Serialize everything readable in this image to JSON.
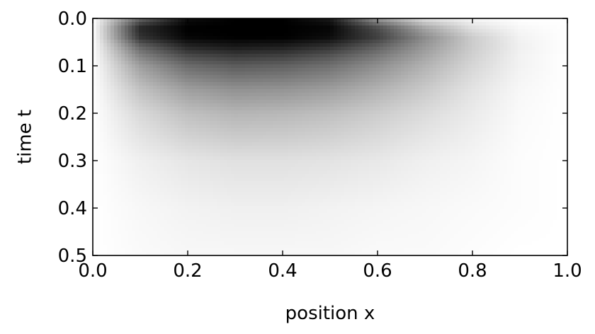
{
  "chart_data": {
    "type": "heatmap",
    "title": "",
    "xlabel": "position x",
    "ylabel": "time t",
    "xlim": [
      0.0,
      1.0
    ],
    "ylim": [
      0.0,
      0.5
    ],
    "y_inverted": true,
    "grid": false,
    "legend": "none",
    "colormap": "Greys",
    "x_ticks": [
      {
        "value": 0.0,
        "label": "0.0"
      },
      {
        "value": 0.2,
        "label": "0.2"
      },
      {
        "value": 0.4,
        "label": "0.4"
      },
      {
        "value": 0.6,
        "label": "0.6"
      },
      {
        "value": 0.8,
        "label": "0.8"
      },
      {
        "value": 1.0,
        "label": "1.0"
      }
    ],
    "y_ticks": [
      {
        "value": 0.0,
        "label": "0.0"
      },
      {
        "value": 0.1,
        "label": "0.1"
      },
      {
        "value": 0.2,
        "label": "0.2"
      },
      {
        "value": 0.3,
        "label": "0.3"
      },
      {
        "value": 0.4,
        "label": "0.4"
      },
      {
        "value": 0.5,
        "label": "0.5"
      }
    ],
    "x": [
      0.0,
      0.1,
      0.2,
      0.3,
      0.4,
      0.5,
      0.6,
      0.7,
      0.8,
      0.9,
      1.0
    ],
    "y": [
      0.0,
      0.02,
      0.04,
      0.06,
      0.08,
      0.1,
      0.15,
      0.2,
      0.3,
      0.4,
      0.5
    ],
    "z": [
      [
        0.0,
        0.6,
        0.95,
        1.0,
        1.0,
        0.9,
        0.4,
        0.12,
        0.03,
        0.0,
        0.0
      ],
      [
        0.0,
        0.85,
        1.0,
        1.0,
        1.0,
        0.98,
        0.7,
        0.35,
        0.12,
        0.03,
        0.0
      ],
      [
        0.0,
        0.8,
        0.98,
        1.0,
        1.0,
        0.95,
        0.75,
        0.45,
        0.2,
        0.05,
        0.0
      ],
      [
        0.0,
        0.6,
        0.85,
        0.9,
        0.88,
        0.8,
        0.62,
        0.4,
        0.2,
        0.06,
        0.0
      ],
      [
        0.0,
        0.48,
        0.7,
        0.76,
        0.74,
        0.66,
        0.52,
        0.35,
        0.18,
        0.05,
        0.0
      ],
      [
        0.0,
        0.38,
        0.58,
        0.64,
        0.62,
        0.56,
        0.44,
        0.3,
        0.16,
        0.05,
        0.0
      ],
      [
        0.0,
        0.24,
        0.38,
        0.43,
        0.42,
        0.38,
        0.3,
        0.21,
        0.11,
        0.03,
        0.0
      ],
      [
        0.0,
        0.15,
        0.25,
        0.29,
        0.28,
        0.25,
        0.2,
        0.14,
        0.08,
        0.02,
        0.0
      ],
      [
        0.0,
        0.06,
        0.1,
        0.12,
        0.12,
        0.11,
        0.09,
        0.06,
        0.04,
        0.01,
        0.0
      ],
      [
        0.0,
        0.03,
        0.05,
        0.06,
        0.06,
        0.05,
        0.04,
        0.03,
        0.02,
        0.01,
        0.0
      ],
      [
        0.0,
        0.02,
        0.03,
        0.03,
        0.03,
        0.03,
        0.02,
        0.02,
        0.01,
        0.0,
        0.0
      ]
    ]
  }
}
